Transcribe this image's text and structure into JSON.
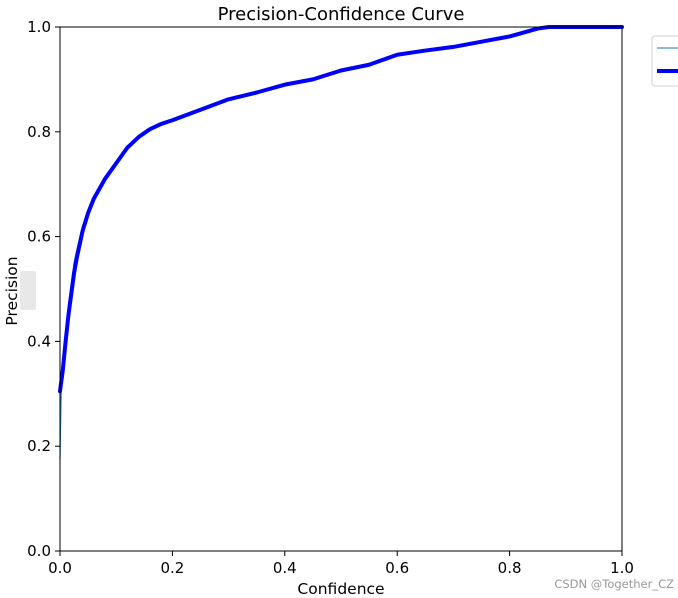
{
  "chart_data": {
    "type": "line",
    "title": "Precision-Confidence Curve",
    "xlabel": "Confidence",
    "ylabel": "Precision",
    "xlim": [
      0.0,
      1.0
    ],
    "ylim": [
      0.0,
      1.0
    ],
    "xticks": [
      0.0,
      0.2,
      0.4,
      0.6,
      0.8,
      1.0
    ],
    "yticks": [
      0.0,
      0.2,
      0.4,
      0.6,
      0.8,
      1.0
    ],
    "xtick_labels": [
      "0.0",
      "0.2",
      "0.4",
      "0.6",
      "0.8",
      "1.0"
    ],
    "ytick_labels": [
      "0.0",
      "0.2",
      "0.4",
      "0.6",
      "0.8",
      "1.0"
    ],
    "grid": false,
    "legend_position": "outside-top-right",
    "series": [
      {
        "color": "#1f77b4",
        "style": "thin",
        "x": [
          0.0,
          0.002,
          0.005,
          0.01,
          0.015,
          0.02,
          0.025,
          0.03,
          0.04,
          0.05,
          0.06,
          0.08,
          0.1,
          0.12,
          0.14,
          0.16,
          0.18,
          0.2,
          0.25,
          0.3,
          0.35,
          0.4,
          0.45,
          0.5,
          0.55,
          0.6,
          0.65,
          0.7,
          0.75,
          0.8,
          0.82,
          0.85,
          0.87,
          0.9,
          0.95,
          1.0
        ],
        "y": [
          0.175,
          0.3,
          0.36,
          0.42,
          0.47,
          0.51,
          0.55,
          0.575,
          0.62,
          0.65,
          0.675,
          0.71,
          0.74,
          0.77,
          0.79,
          0.805,
          0.815,
          0.822,
          0.842,
          0.862,
          0.875,
          0.89,
          0.9,
          0.917,
          0.928,
          0.947,
          0.955,
          0.962,
          0.972,
          0.982,
          0.988,
          0.997,
          1.0,
          1.0,
          1.0,
          1.0
        ]
      },
      {
        "color": "#0000ff",
        "style": "thick",
        "x": [
          0.0,
          0.005,
          0.01,
          0.015,
          0.02,
          0.025,
          0.03,
          0.04,
          0.05,
          0.06,
          0.08,
          0.1,
          0.12,
          0.14,
          0.16,
          0.18,
          0.2,
          0.25,
          0.3,
          0.35,
          0.4,
          0.45,
          0.5,
          0.55,
          0.6,
          0.65,
          0.7,
          0.75,
          0.8,
          0.82,
          0.85,
          0.87,
          0.9,
          0.95,
          1.0
        ],
        "y": [
          0.305,
          0.345,
          0.4,
          0.45,
          0.49,
          0.53,
          0.56,
          0.61,
          0.645,
          0.672,
          0.71,
          0.74,
          0.77,
          0.79,
          0.805,
          0.815,
          0.822,
          0.842,
          0.862,
          0.875,
          0.89,
          0.9,
          0.917,
          0.928,
          0.947,
          0.955,
          0.962,
          0.972,
          0.982,
          0.988,
          0.997,
          1.0,
          1.0,
          1.0,
          1.0
        ]
      }
    ]
  },
  "watermark": "CSDN @Together_CZ"
}
